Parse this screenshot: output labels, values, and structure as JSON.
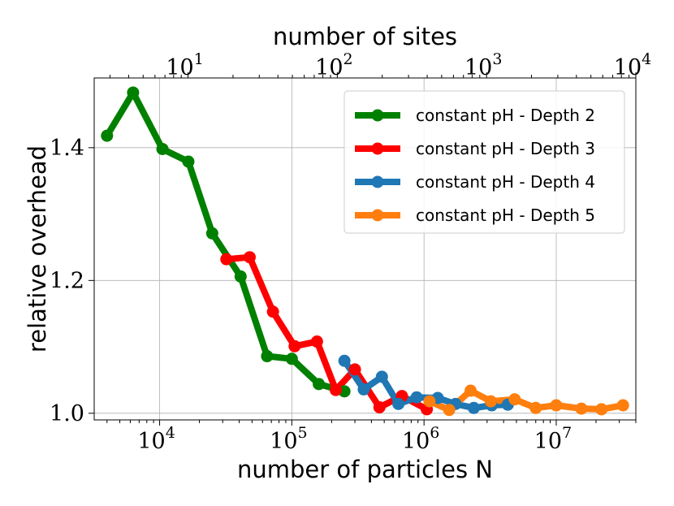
{
  "chart_data": {
    "type": "line",
    "title": "",
    "xlabel": "number of particles N",
    "ylabel": "relative overhead",
    "top_xlabel": "number of sites",
    "x_scale": "log",
    "xlim": [
      3200,
      40000000
    ],
    "ylim": [
      0.99,
      1.505
    ],
    "top_xlim": [
      2.35,
      10000
    ],
    "x_ticks": [
      {
        "value": 10000,
        "base": "10",
        "exp": "4"
      },
      {
        "value": 100000,
        "base": "10",
        "exp": "5"
      },
      {
        "value": 1000000,
        "base": "10",
        "exp": "6"
      },
      {
        "value": 10000000,
        "base": "10",
        "exp": "7"
      }
    ],
    "top_ticks": [
      {
        "value": 10,
        "base": "10",
        "exp": "1"
      },
      {
        "value": 100,
        "base": "10",
        "exp": "2"
      },
      {
        "value": 1000,
        "base": "10",
        "exp": "3"
      },
      {
        "value": 10000,
        "base": "10",
        "exp": "4"
      }
    ],
    "y_ticks": [
      {
        "value": 1.0,
        "label": "1.0"
      },
      {
        "value": 1.2,
        "label": "1.2"
      },
      {
        "value": 1.4,
        "label": "1.4"
      }
    ],
    "grid": true,
    "legend_position": "top-right",
    "series": [
      {
        "name": "constant pH - Depth 2",
        "color": "#008000",
        "x": [
          4000,
          6300,
          10500,
          16500,
          25000,
          41000,
          65000,
          100000,
          160000,
          250000
        ],
        "y": [
          1.418,
          1.483,
          1.398,
          1.379,
          1.271,
          1.206,
          1.086,
          1.082,
          1.044,
          1.033
        ]
      },
      {
        "name": "constant pH - Depth 3",
        "color": "#ff0000",
        "x": [
          32000,
          48000,
          72000,
          105000,
          155000,
          215000,
          300000,
          460000,
          680000,
          1050000
        ],
        "y": [
          1.232,
          1.235,
          1.153,
          1.101,
          1.108,
          1.035,
          1.066,
          1.009,
          1.026,
          1.006
        ]
      },
      {
        "name": "constant pH - Depth 4",
        "color": "#1f77b4",
        "x": [
          250000,
          350000,
          480000,
          640000,
          880000,
          1270000,
          1730000,
          2380000,
          3250000,
          4300000
        ],
        "y": [
          1.079,
          1.036,
          1.055,
          1.014,
          1.024,
          1.023,
          1.014,
          1.008,
          1.012,
          1.013
        ]
      },
      {
        "name": "constant pH - Depth 5",
        "color": "#ff7f0e",
        "x": [
          1100000,
          1550000,
          2250000,
          3200000,
          4850000,
          7000000,
          10000000,
          15500000,
          22000000,
          32000000
        ],
        "y": [
          1.018,
          1.005,
          1.034,
          1.018,
          1.021,
          1.008,
          1.012,
          1.007,
          1.006,
          1.012
        ]
      }
    ]
  }
}
